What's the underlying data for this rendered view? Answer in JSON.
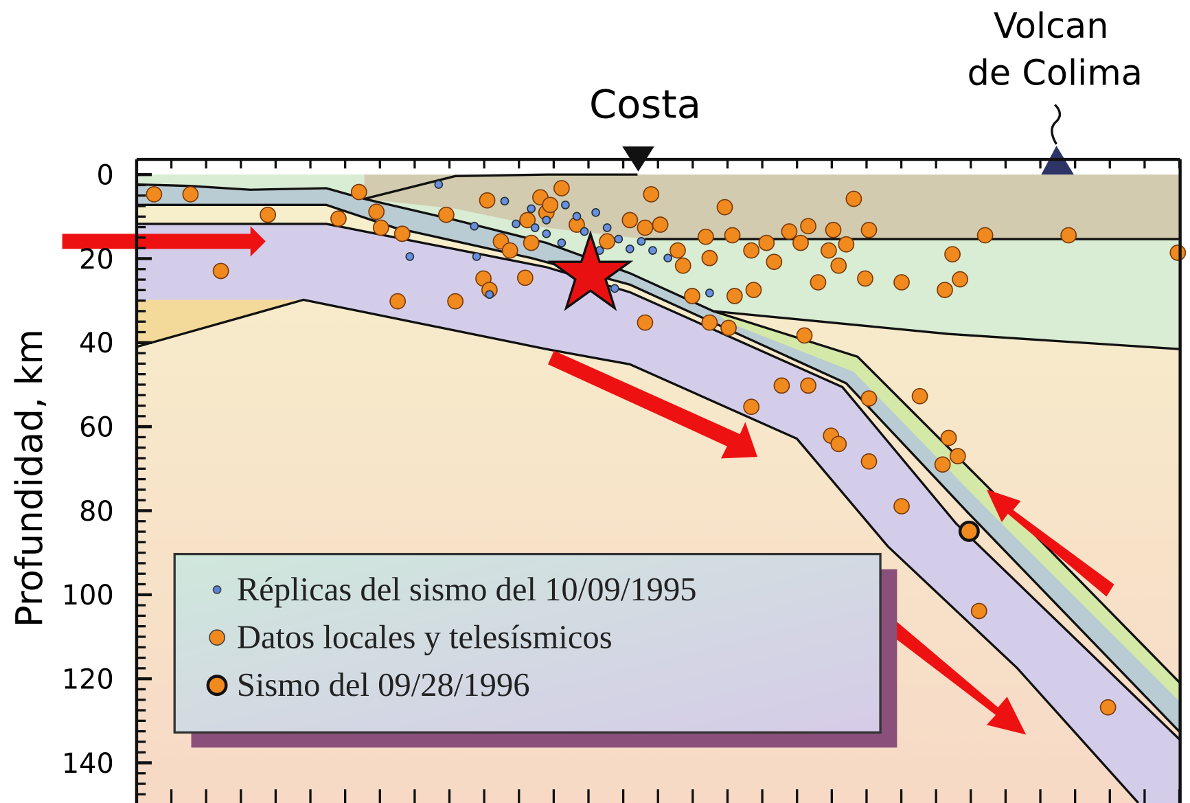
{
  "axis": {
    "label": "Profundidad, km",
    "lim": [
      0,
      146
    ],
    "ticks": [
      0,
      20,
      40,
      60,
      80,
      100,
      120,
      140
    ]
  },
  "labels": {
    "coast": "Costa",
    "volcano_line1": "Volcan",
    "volcano_line2": "de Colima"
  },
  "legend": [
    {
      "label": "Réplicas del sismo del 10/09/1995",
      "color": "#5b7fd6"
    },
    {
      "label": "Datos locales y telesísmicos",
      "color": "#f08a1e"
    },
    {
      "label": "Sismo del 09/28/1996",
      "color": "#f08a1e"
    }
  ]
}
